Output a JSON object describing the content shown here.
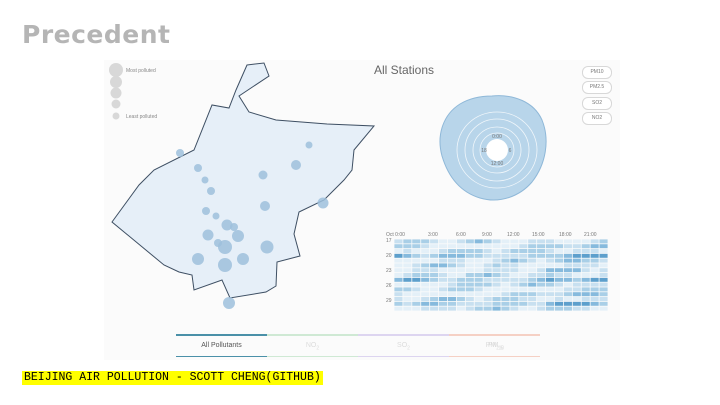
{
  "slide": {
    "title": "Precedent"
  },
  "legend": {
    "most": "Most polluted",
    "least": "Least polluted"
  },
  "station_view": {
    "title": "All Stations"
  },
  "clock": {
    "top": "0:00",
    "left": "18",
    "right": "6",
    "bottom": "12:00"
  },
  "pollutant_list": [
    "PM10",
    "PM2.5",
    "SO2",
    "NO2"
  ],
  "heatmap": {
    "times": [
      "Oct 0:00",
      "3:00",
      "6:00",
      "9:00",
      "12:00",
      "15:00",
      "18:00",
      "21:00"
    ],
    "days": [
      "17",
      "20",
      "23",
      "26",
      "29"
    ]
  },
  "tabs": [
    {
      "main": "All Pollutants",
      "sub": "",
      "color": "#4a90a8"
    },
    {
      "main": "NO",
      "sub": "2",
      "color": "#a8d8b0"
    },
    {
      "main": "SO",
      "sub": "2",
      "color": "#c9bde6"
    },
    {
      "main": "PM",
      "sub": "2.5",
      "color": "#f0b8a8"
    },
    {
      "main": "PM",
      "sub": "10",
      "color": "#f0c0a8"
    }
  ],
  "caption": "BEIJING AIR POLLUTION - SCOTT CHENG(GITHUB)",
  "colors": {
    "map_fill": "#e6eff8",
    "map_stroke": "#3e4f63",
    "bubble": "#9ebfdc",
    "accent": "#4a90a8"
  }
}
